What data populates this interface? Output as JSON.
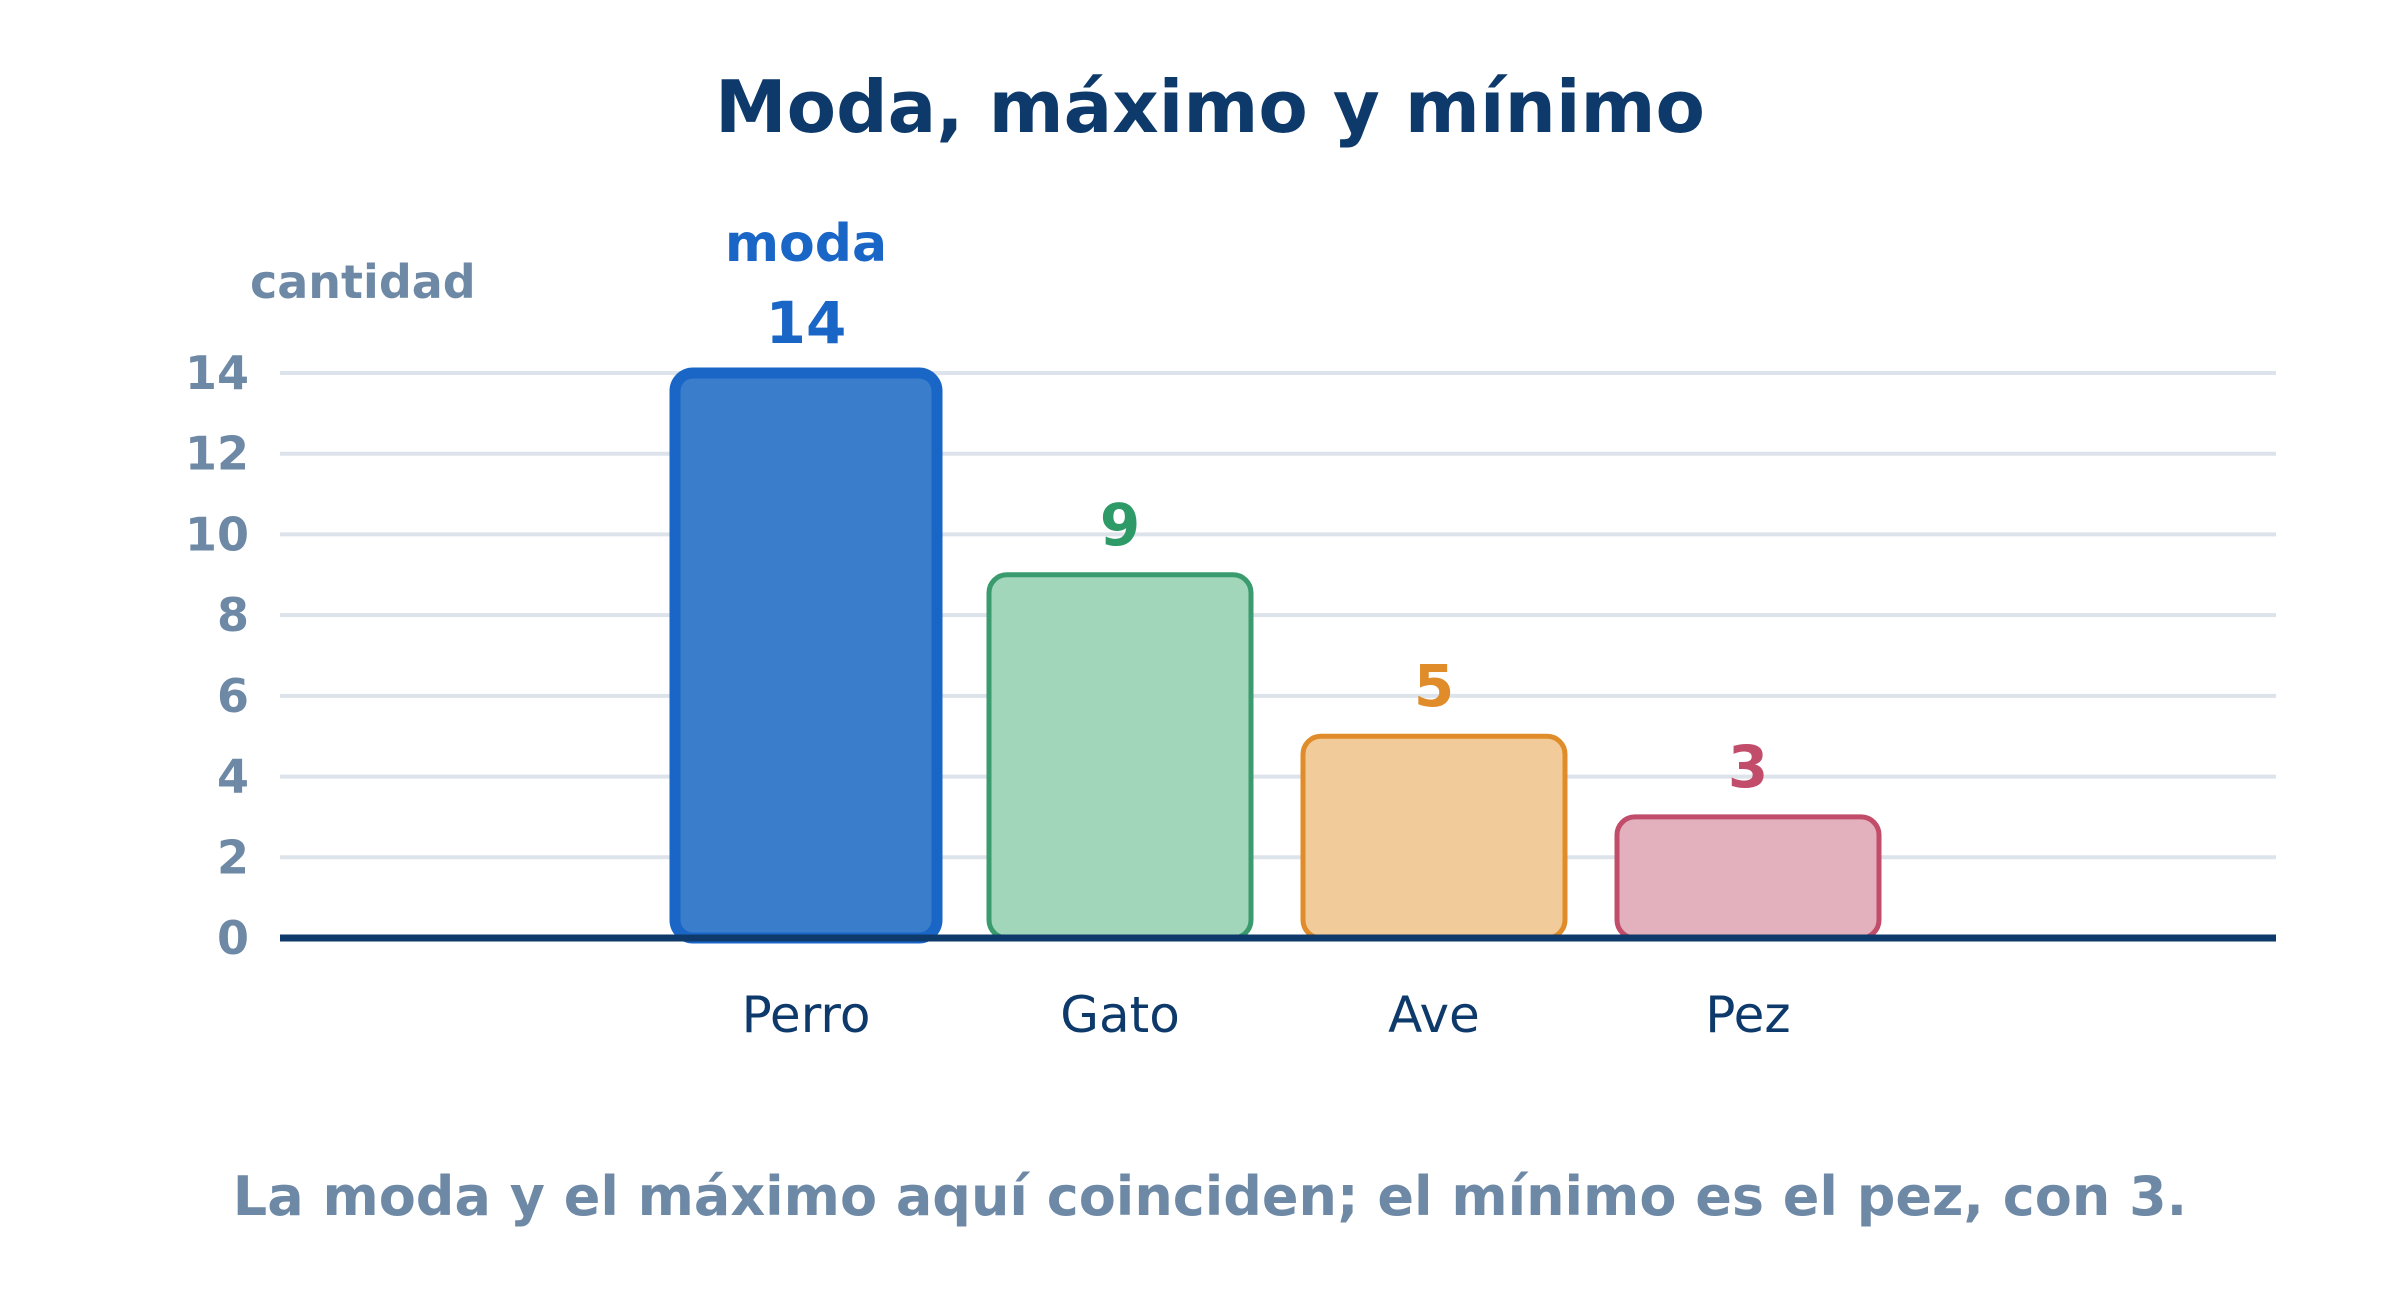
{
  "chart_data": {
    "type": "bar",
    "title": "Moda, máximo y mínimo",
    "ylabel": "cantidad",
    "xlabel": "",
    "categories": [
      "Perro",
      "Gato",
      "Ave",
      "Pez"
    ],
    "values": [
      14,
      9,
      5,
      3
    ],
    "ylim": [
      0,
      14
    ],
    "yticks": [
      "0",
      "2",
      "4",
      "6",
      "8",
      "10",
      "12",
      "14"
    ],
    "grid": true,
    "mode_label": "moda",
    "mode_category": "Perro",
    "caption": "La moda y el máximo aquí coinciden; el mínimo es el pez, con 3.",
    "colors": {
      "title": "#0d3a6b",
      "axis_text": "#6e89a6",
      "baseline": "#0d3a6b",
      "grid": "#dde3ea",
      "bars": [
        {
          "fill": "#3a7dcb",
          "stroke": "#1a66c7",
          "label": "#1a66c7"
        },
        {
          "fill": "#a2d6bb",
          "stroke": "#3a9c6e",
          "label": "#2e9a68"
        },
        {
          "fill": "#f2cb9a",
          "stroke": "#e08c2a",
          "label": "#e08c2a"
        },
        {
          "fill": "#e3b0bd",
          "stroke": "#c24d6a",
          "label": "#c24d6a"
        }
      ]
    }
  }
}
